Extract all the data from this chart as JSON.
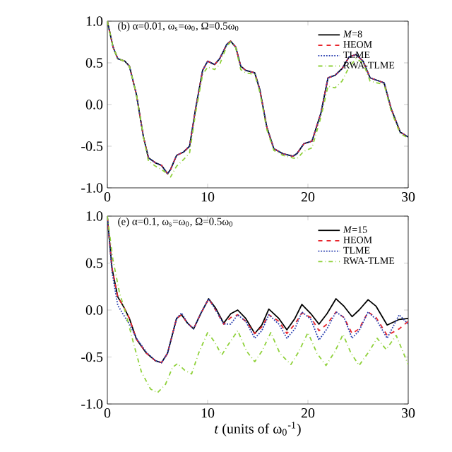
{
  "chart_data": [
    {
      "type": "line",
      "title": "(b) α=0.01, ω$_{s}$=ω$_{0}$, Ω=0.5ω$_{0}$",
      "xlim": [
        0,
        30
      ],
      "ylim": [
        -1,
        1
      ],
      "xticks": [
        0,
        10,
        20,
        30
      ],
      "yticks": [
        {
          "value": -1,
          "label": "-1.0"
        },
        {
          "value": -0.5,
          "label": "-0.5"
        },
        {
          "value": 0,
          "label": "0.0"
        },
        {
          "value": 0.5,
          "label": "0.5"
        },
        {
          "value": 1,
          "label": "1.0"
        }
      ],
      "legend": "top right",
      "series": [
        {
          "name": "*M*=8",
          "color": "#000000",
          "line_style": "solid",
          "x": [
            0,
            0.57,
            1.04,
            1.74,
            2.2,
            2.9,
            3.6,
            4.1,
            4.8,
            5.4,
            6.0,
            6.3,
            6.9,
            7.6,
            8.2,
            8.8,
            9.5,
            10.0,
            10.7,
            11.2,
            11.9,
            12.3,
            12.8,
            13.3,
            13.8,
            14.7,
            15.2,
            15.9,
            16.6,
            17.5,
            18.5,
            18.9,
            19.6,
            20.4,
            21.3,
            22.0,
            22.7,
            23.4,
            24.1,
            24.8,
            25.5,
            26.2,
            26.9,
            27.6,
            28.3,
            29.2,
            30
          ],
          "values": [
            1.0,
            0.69,
            0.55,
            0.52,
            0.46,
            0.12,
            -0.39,
            -0.64,
            -0.7,
            -0.73,
            -0.83,
            -0.78,
            -0.61,
            -0.57,
            -0.5,
            -0.05,
            0.41,
            0.52,
            0.48,
            0.55,
            0.72,
            0.76,
            0.69,
            0.46,
            0.41,
            0.38,
            0.18,
            -0.27,
            -0.53,
            -0.59,
            -0.62,
            -0.59,
            -0.47,
            -0.44,
            -0.1,
            0.32,
            0.35,
            0.43,
            0.57,
            0.6,
            0.52,
            0.32,
            0.29,
            0.26,
            -0.05,
            -0.33,
            -0.39
          ]
        },
        {
          "name": "HEOM",
          "color": "#e8232a",
          "line_style": "dashed",
          "x": [
            0,
            0.57,
            1.04,
            1.74,
            2.2,
            2.9,
            3.6,
            4.1,
            4.8,
            5.4,
            6.0,
            6.3,
            6.9,
            7.6,
            8.2,
            8.8,
            9.5,
            10.0,
            10.7,
            11.2,
            11.9,
            12.3,
            12.8,
            13.3,
            13.8,
            14.7,
            15.2,
            15.9,
            16.6,
            17.5,
            18.5,
            18.9,
            19.6,
            20.4,
            21.3,
            22.0,
            22.7,
            23.4,
            24.1,
            24.8,
            25.5,
            26.2,
            26.9,
            27.6,
            28.3,
            29.2,
            30
          ],
          "values": [
            1.0,
            0.69,
            0.55,
            0.52,
            0.46,
            0.12,
            -0.39,
            -0.64,
            -0.7,
            -0.73,
            -0.83,
            -0.78,
            -0.61,
            -0.57,
            -0.5,
            -0.05,
            0.41,
            0.52,
            0.48,
            0.55,
            0.72,
            0.76,
            0.69,
            0.46,
            0.41,
            0.38,
            0.18,
            -0.27,
            -0.53,
            -0.59,
            -0.62,
            -0.59,
            -0.47,
            -0.44,
            -0.1,
            0.32,
            0.35,
            0.43,
            0.57,
            0.6,
            0.52,
            0.32,
            0.29,
            0.26,
            -0.05,
            -0.33,
            -0.39
          ]
        },
        {
          "name": "TLME",
          "color": "#2a3fb0",
          "line_style": "dotted",
          "x": [
            0,
            0.57,
            1.04,
            1.74,
            2.2,
            2.9,
            3.6,
            4.1,
            4.8,
            5.4,
            6.0,
            6.3,
            6.9,
            7.6,
            8.2,
            8.8,
            9.5,
            10.0,
            10.7,
            11.2,
            11.9,
            12.3,
            12.8,
            13.3,
            13.8,
            14.7,
            15.2,
            15.9,
            16.6,
            17.5,
            18.5,
            18.9,
            19.6,
            20.4,
            21.3,
            22.0,
            22.7,
            23.4,
            24.1,
            24.8,
            25.5,
            26.2,
            26.9,
            27.6,
            28.3,
            29.2,
            30
          ],
          "values": [
            1.0,
            0.69,
            0.55,
            0.52,
            0.46,
            0.12,
            -0.39,
            -0.64,
            -0.7,
            -0.73,
            -0.83,
            -0.78,
            -0.61,
            -0.57,
            -0.5,
            -0.05,
            0.41,
            0.52,
            0.48,
            0.55,
            0.72,
            0.76,
            0.69,
            0.46,
            0.41,
            0.38,
            0.18,
            -0.27,
            -0.53,
            -0.59,
            -0.62,
            -0.59,
            -0.47,
            -0.44,
            -0.1,
            0.32,
            0.35,
            0.43,
            0.57,
            0.6,
            0.52,
            0.32,
            0.29,
            0.26,
            -0.05,
            -0.33,
            -0.39
          ]
        },
        {
          "name": "RWA-TLME",
          "color": "#8fd13a",
          "line_style": "dashdot",
          "x": [
            0,
            0.57,
            1.04,
            1.74,
            2.2,
            2.9,
            3.6,
            4.1,
            4.8,
            5.4,
            6.0,
            6.3,
            6.9,
            7.6,
            8.2,
            8.8,
            9.5,
            10.0,
            10.7,
            11.2,
            11.9,
            12.3,
            12.8,
            13.3,
            13.8,
            14.7,
            15.2,
            15.9,
            16.6,
            17.5,
            18.5,
            18.9,
            19.6,
            20.4,
            21.3,
            22.0,
            22.7,
            23.4,
            24.1,
            24.8,
            25.5,
            26.2,
            26.9,
            27.6,
            28.3,
            29.2,
            30
          ],
          "values": [
            1.0,
            0.69,
            0.55,
            0.52,
            0.46,
            0.12,
            -0.39,
            -0.68,
            -0.74,
            -0.78,
            -0.83,
            -0.87,
            -0.74,
            -0.66,
            -0.58,
            -0.1,
            0.36,
            0.45,
            0.42,
            0.48,
            0.7,
            0.75,
            0.68,
            0.42,
            0.38,
            0.36,
            0.15,
            -0.3,
            -0.55,
            -0.61,
            -0.64,
            -0.65,
            -0.56,
            -0.52,
            -0.15,
            0.22,
            0.2,
            0.28,
            0.45,
            0.55,
            0.5,
            0.28,
            0.26,
            0.24,
            -0.08,
            -0.35,
            -0.4
          ]
        }
      ]
    },
    {
      "type": "line",
      "title": "(e) α=0.1, ω$_{s}$=ω$_{0}$, Ω=0.5ω$_{0}$",
      "xlabel": "*t* (units of ω$_{0}$$^{-1}$)",
      "xlim": [
        0,
        30
      ],
      "ylim": [
        -1,
        1
      ],
      "xticks": [
        0,
        10,
        20,
        30
      ],
      "yticks": [
        {
          "value": -1,
          "label": "-1.0"
        },
        {
          "value": -0.5,
          "label": "-0.5"
        },
        {
          "value": 0,
          "label": "0.0"
        },
        {
          "value": 0.5,
          "label": "0.5"
        },
        {
          "value": 1,
          "label": "1.0"
        }
      ],
      "legend": "top right",
      "series": [
        {
          "name": "*M*=15",
          "color": "#000000",
          "line_style": "solid",
          "x": [
            0,
            0.47,
            1.04,
            1.6,
            2.2,
            2.9,
            3.9,
            4.8,
            5.4,
            6.0,
            6.9,
            7.4,
            8.0,
            8.6,
            9.3,
            10.1,
            10.8,
            11.6,
            12.3,
            13.0,
            13.8,
            14.7,
            15.4,
            16.1,
            17.1,
            17.9,
            18.7,
            19.4,
            20.3,
            21.1,
            21.9,
            22.8,
            23.6,
            24.4,
            25.1,
            26.0,
            26.8,
            27.9,
            29.1,
            30
          ],
          "values": [
            0.99,
            0.44,
            0.14,
            0.04,
            -0.09,
            -0.31,
            -0.46,
            -0.54,
            -0.56,
            -0.46,
            -0.09,
            -0.05,
            -0.14,
            -0.2,
            -0.04,
            0.12,
            0.02,
            -0.14,
            -0.04,
            0.0,
            -0.09,
            -0.25,
            -0.16,
            0.01,
            -0.09,
            -0.21,
            -0.09,
            0.06,
            -0.04,
            -0.15,
            -0.04,
            0.12,
            0.04,
            -0.07,
            0.0,
            0.11,
            0.04,
            -0.16,
            -0.1,
            -0.09
          ]
        },
        {
          "name": "HEOM",
          "color": "#e8232a",
          "line_style": "dashed",
          "x": [
            0,
            0.47,
            1.04,
            1.6,
            2.2,
            2.9,
            3.9,
            4.8,
            5.4,
            6.0,
            6.9,
            7.4,
            8.0,
            8.6,
            9.3,
            10.1,
            10.8,
            11.6,
            12.3,
            13.0,
            13.8,
            14.7,
            15.4,
            16.1,
            17.1,
            17.9,
            18.7,
            19.4,
            20.3,
            21.1,
            21.9,
            22.8,
            23.6,
            24.4,
            25.1,
            26.0,
            26.8,
            27.9,
            29.1,
            30
          ],
          "values": [
            0.99,
            0.44,
            0.14,
            0.04,
            -0.09,
            -0.31,
            -0.46,
            -0.54,
            -0.56,
            -0.46,
            -0.09,
            -0.05,
            -0.14,
            -0.2,
            -0.04,
            0.12,
            0.0,
            -0.15,
            -0.08,
            -0.05,
            -0.12,
            -0.25,
            -0.18,
            -0.05,
            -0.12,
            -0.25,
            -0.15,
            -0.03,
            -0.08,
            -0.22,
            -0.15,
            -0.02,
            -0.08,
            -0.25,
            -0.2,
            -0.02,
            -0.08,
            -0.27,
            -0.2,
            -0.12
          ]
        },
        {
          "name": "TLME",
          "color": "#2a3fb0",
          "line_style": "dotted",
          "x": [
            0,
            0.47,
            1.04,
            1.6,
            2.2,
            2.9,
            3.9,
            4.8,
            5.4,
            6.0,
            6.9,
            7.4,
            8.0,
            8.6,
            9.3,
            10.1,
            10.8,
            11.6,
            12.3,
            13.0,
            13.8,
            14.7,
            15.4,
            16.1,
            17.1,
            17.9,
            18.7,
            19.4,
            20.3,
            21.1,
            21.9,
            22.8,
            23.6,
            24.4,
            25.1,
            26.0,
            26.8,
            27.9,
            29.1,
            30
          ],
          "values": [
            1.0,
            0.4,
            0.05,
            -0.05,
            -0.15,
            -0.3,
            -0.45,
            -0.54,
            -0.56,
            -0.46,
            -0.09,
            -0.03,
            -0.14,
            -0.2,
            -0.04,
            0.12,
            0.0,
            -0.15,
            -0.15,
            -0.05,
            -0.12,
            -0.3,
            -0.22,
            -0.05,
            -0.15,
            -0.3,
            -0.2,
            -0.02,
            -0.1,
            -0.32,
            -0.2,
            -0.02,
            -0.08,
            -0.3,
            -0.22,
            -0.02,
            -0.1,
            -0.3,
            -0.05,
            -0.15
          ]
        },
        {
          "name": "RWA-TLME",
          "color": "#8fd13a",
          "line_style": "dashdot",
          "x": [
            0,
            0.55,
            1.2,
            1.9,
            2.7,
            3.4,
            4.3,
            5.0,
            5.8,
            6.5,
            7.0,
            7.7,
            8.4,
            9.1,
            10.0,
            10.7,
            11.4,
            12.1,
            13.0,
            13.9,
            14.7,
            15.4,
            16.3,
            17.2,
            18.3,
            19.1,
            20.0,
            20.9,
            21.8,
            22.7,
            23.5,
            24.3,
            25.1,
            26.1,
            26.9,
            27.8,
            28.8,
            30
          ],
          "values": [
            1.0,
            0.54,
            0.19,
            -0.06,
            -0.39,
            -0.66,
            -0.84,
            -0.88,
            -0.79,
            -0.61,
            -0.57,
            -0.64,
            -0.68,
            -0.46,
            -0.24,
            -0.34,
            -0.48,
            -0.36,
            -0.22,
            -0.44,
            -0.55,
            -0.44,
            -0.24,
            -0.46,
            -0.58,
            -0.44,
            -0.24,
            -0.46,
            -0.59,
            -0.44,
            -0.26,
            -0.46,
            -0.59,
            -0.44,
            -0.3,
            -0.42,
            -0.27,
            -0.58
          ]
        }
      ]
    }
  ]
}
